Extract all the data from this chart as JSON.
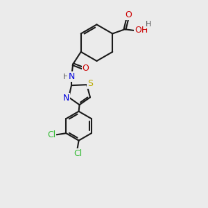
{
  "bg_color": "#ebebeb",
  "bond_color": "#1a1a1a",
  "atom_colors": {
    "O": "#cc0000",
    "N": "#0000dd",
    "S": "#bbaa00",
    "Cl": "#33bb33",
    "H": "#555555",
    "C": "#1a1a1a"
  },
  "font_size": 9,
  "line_width": 1.5
}
